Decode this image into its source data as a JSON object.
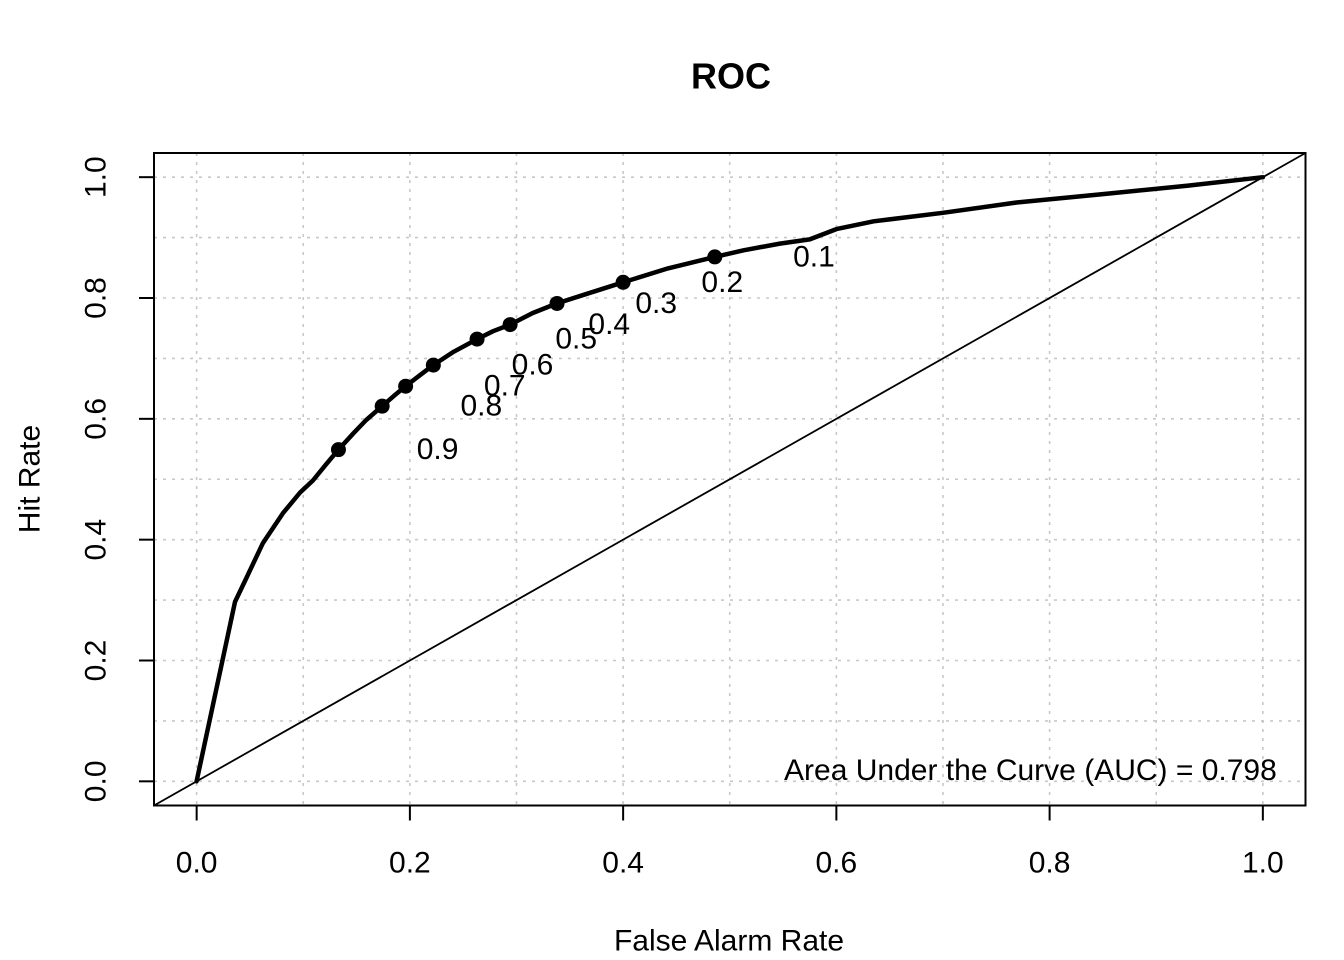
{
  "title": "ROC",
  "chart_data": {
    "type": "line",
    "title": "ROC",
    "xlabel": "False Alarm Rate",
    "ylabel": "Hit Rate",
    "xlim": [
      -0.04,
      1.04
    ],
    "ylim": [
      -0.04,
      1.04
    ],
    "x_ticks": {
      "values": [
        0.0,
        0.2,
        0.4,
        0.6,
        0.8,
        1.0
      ],
      "labels": [
        "0.0",
        "0.2",
        "0.4",
        "0.6",
        "0.8",
        "1.0"
      ]
    },
    "y_ticks": {
      "values": [
        0.0,
        0.2,
        0.4,
        0.6,
        0.8,
        1.0
      ],
      "labels": [
        "0.0",
        "0.2",
        "0.4",
        "0.6",
        "0.8",
        "1.0"
      ]
    },
    "grid": {
      "on": true,
      "step": 0.1,
      "min": 0.0,
      "max": 1.0,
      "color": "#c8c8c8",
      "dash": "3,6"
    },
    "legend_position": "none",
    "series": [
      {
        "name": "ROC curve",
        "type": "line",
        "color": "#000000",
        "width": 4.5,
        "points": [
          [
            0.0,
            0.0
          ],
          [
            0.036,
            0.297
          ],
          [
            0.047,
            0.338
          ],
          [
            0.062,
            0.394
          ],
          [
            0.081,
            0.444
          ],
          [
            0.097,
            0.478
          ],
          [
            0.109,
            0.498
          ],
          [
            0.121,
            0.524
          ],
          [
            0.133,
            0.549
          ],
          [
            0.147,
            0.576
          ],
          [
            0.159,
            0.598
          ],
          [
            0.174,
            0.621
          ],
          [
            0.185,
            0.638
          ],
          [
            0.196,
            0.654
          ],
          [
            0.21,
            0.673
          ],
          [
            0.222,
            0.689
          ],
          [
            0.241,
            0.711
          ],
          [
            0.263,
            0.732
          ],
          [
            0.278,
            0.745
          ],
          [
            0.294,
            0.756
          ],
          [
            0.315,
            0.775
          ],
          [
            0.338,
            0.791
          ],
          [
            0.366,
            0.807
          ],
          [
            0.4,
            0.826
          ],
          [
            0.442,
            0.849
          ],
          [
            0.486,
            0.868
          ],
          [
            0.513,
            0.879
          ],
          [
            0.547,
            0.89
          ],
          [
            0.575,
            0.897
          ],
          [
            0.6,
            0.914
          ],
          [
            0.635,
            0.927
          ],
          [
            0.7,
            0.941
          ],
          [
            0.769,
            0.958
          ],
          [
            0.85,
            0.972
          ],
          [
            0.93,
            0.986
          ],
          [
            1.0,
            1.0
          ]
        ]
      },
      {
        "name": "chance diagonal",
        "type": "line",
        "color": "#000000",
        "width": 1.8,
        "points": [
          [
            -0.04,
            -0.04
          ],
          [
            1.04,
            1.04
          ]
        ]
      }
    ],
    "threshold_points": [
      {
        "threshold": "0.9",
        "x": 0.133,
        "y": 0.549
      },
      {
        "threshold": "0.8",
        "x": 0.174,
        "y": 0.621
      },
      {
        "threshold": "0.7",
        "x": 0.196,
        "y": 0.654
      },
      {
        "threshold": "0.6",
        "x": 0.222,
        "y": 0.689
      },
      {
        "threshold": "0.5",
        "x": 0.263,
        "y": 0.732
      },
      {
        "threshold": "0.4",
        "x": 0.294,
        "y": 0.756
      },
      {
        "threshold": "0.3",
        "x": 0.338,
        "y": 0.791
      },
      {
        "threshold": "0.2",
        "x": 0.4,
        "y": 0.826
      },
      {
        "threshold": "0.1",
        "x": 0.486,
        "y": 0.868
      }
    ],
    "point_style": {
      "radius": 7.5,
      "color": "#000000",
      "label_dx_data": 0.093,
      "label_dy_data": 0.0
    },
    "annotation": {
      "text": "Area Under the Curve (AUC) = 0.798",
      "x": 0.782,
      "y": 0.018
    },
    "auc": 0.798
  }
}
